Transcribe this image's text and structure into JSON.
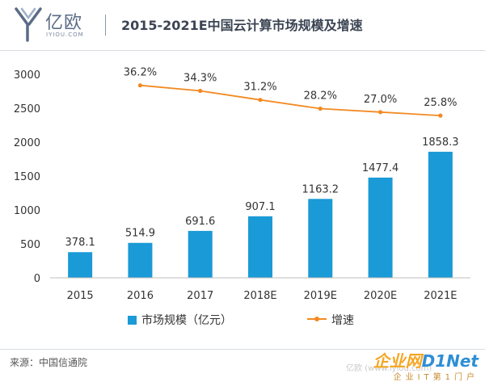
{
  "header": {
    "logo_text": "亿欧",
    "logo_subtext": "IYIOU.COM",
    "title": "2015-2021E中国云计算市场规模及增速"
  },
  "chart_data": {
    "type": "bar",
    "categories": [
      "2015",
      "2016",
      "2017",
      "2018E",
      "2019E",
      "2020E",
      "2021E"
    ],
    "yticks": [
      "0",
      "500",
      "1000",
      "1500",
      "2000",
      "2500",
      "3000"
    ],
    "ylim": [
      0,
      3000
    ],
    "grid": false,
    "legend_position": "bottom",
    "series": [
      {
        "name": "市场规模（亿元）",
        "kind": "bar",
        "color": "#1a9ad6",
        "values": [
          378.1,
          514.9,
          691.6,
          907.1,
          1163.2,
          1477.4,
          1858.3
        ],
        "labels": [
          "378.1",
          "514.9",
          "691.6",
          "907.1",
          "1163.2",
          "1477.4",
          "1858.3"
        ]
      },
      {
        "name": "增速",
        "kind": "line",
        "color": "#f28a22",
        "values_percent": [
          null,
          36.2,
          34.3,
          31.2,
          28.2,
          27.0,
          25.8
        ],
        "labels": [
          "",
          "36.2%",
          "34.3%",
          "31.2%",
          "28.2%",
          "27.0%",
          "25.8%"
        ]
      }
    ]
  },
  "legend": {
    "bar_label": "市场规模（亿元）",
    "line_label": "增速"
  },
  "footer": {
    "source": "来源：中国信通院",
    "watermark_main_a": "企业网",
    "watermark_main_b": "D1Net",
    "watermark_sub": "企业IT第1门户",
    "watermark_faint": "亿欧 (www.iyiou.com)"
  }
}
